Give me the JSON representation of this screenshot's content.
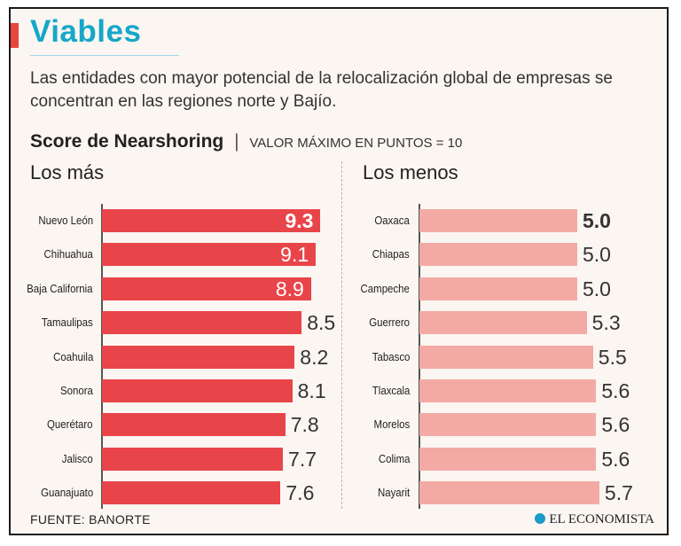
{
  "header": {
    "title": "Viables",
    "subtitle": "Las entidades con mayor potencial de la relocalización global de empresas se concentran en las regiones norte y Bajío."
  },
  "score": {
    "title": "Score de Nearshoring",
    "separator": "|",
    "note": "VALOR MÁXIMO EN PUNTOS = 10"
  },
  "footer": {
    "source": "FUENTE: BANORTE",
    "logo_text": "EL ECONOMISTA"
  },
  "colors": {
    "accent_red": "#e8453c",
    "top_bar": "#e8454a",
    "bottom_bar": "#f3aaa5",
    "title_blue": "#16a7c9"
  },
  "chart_data": [
    {
      "type": "bar",
      "orientation": "horizontal",
      "title": "Los más",
      "categories": [
        "Nuevo León",
        "Chihuahua",
        "Baja California",
        "Tamaulipas",
        "Coahuila",
        "Sonora",
        "Querétaro",
        "Jalisco",
        "Guanajuato"
      ],
      "value_labels": [
        "9.3",
        "9.1",
        "8.9",
        "8.5",
        "8.2",
        "8.1",
        "7.8",
        "7.7",
        "7.6"
      ],
      "values": [
        9.3,
        9.1,
        8.9,
        8.5,
        8.2,
        8.1,
        7.8,
        7.7,
        7.6
      ],
      "xlim": [
        0,
        10
      ],
      "grid": false,
      "label_inside_threshold": 8.9,
      "emphasized_index": 0
    },
    {
      "type": "bar",
      "orientation": "horizontal",
      "title": "Los menos",
      "categories": [
        "Oaxaca",
        "Chiapas",
        "Campeche",
        "Guerrero",
        "Tabasco",
        "Tlaxcala",
        "Morelos",
        "Colima",
        "Nayarit"
      ],
      "value_labels": [
        "5.0",
        "5.0",
        "5.0",
        "5.3",
        "5.5",
        "5.6",
        "5.6",
        "5.6",
        "5.7"
      ],
      "values": [
        5.0,
        5.0,
        5.0,
        5.3,
        5.5,
        5.6,
        5.6,
        5.6,
        5.7
      ],
      "xlim": [
        0,
        10
      ],
      "grid": false,
      "label_inside_threshold": 99,
      "emphasized_index": 0
    }
  ]
}
